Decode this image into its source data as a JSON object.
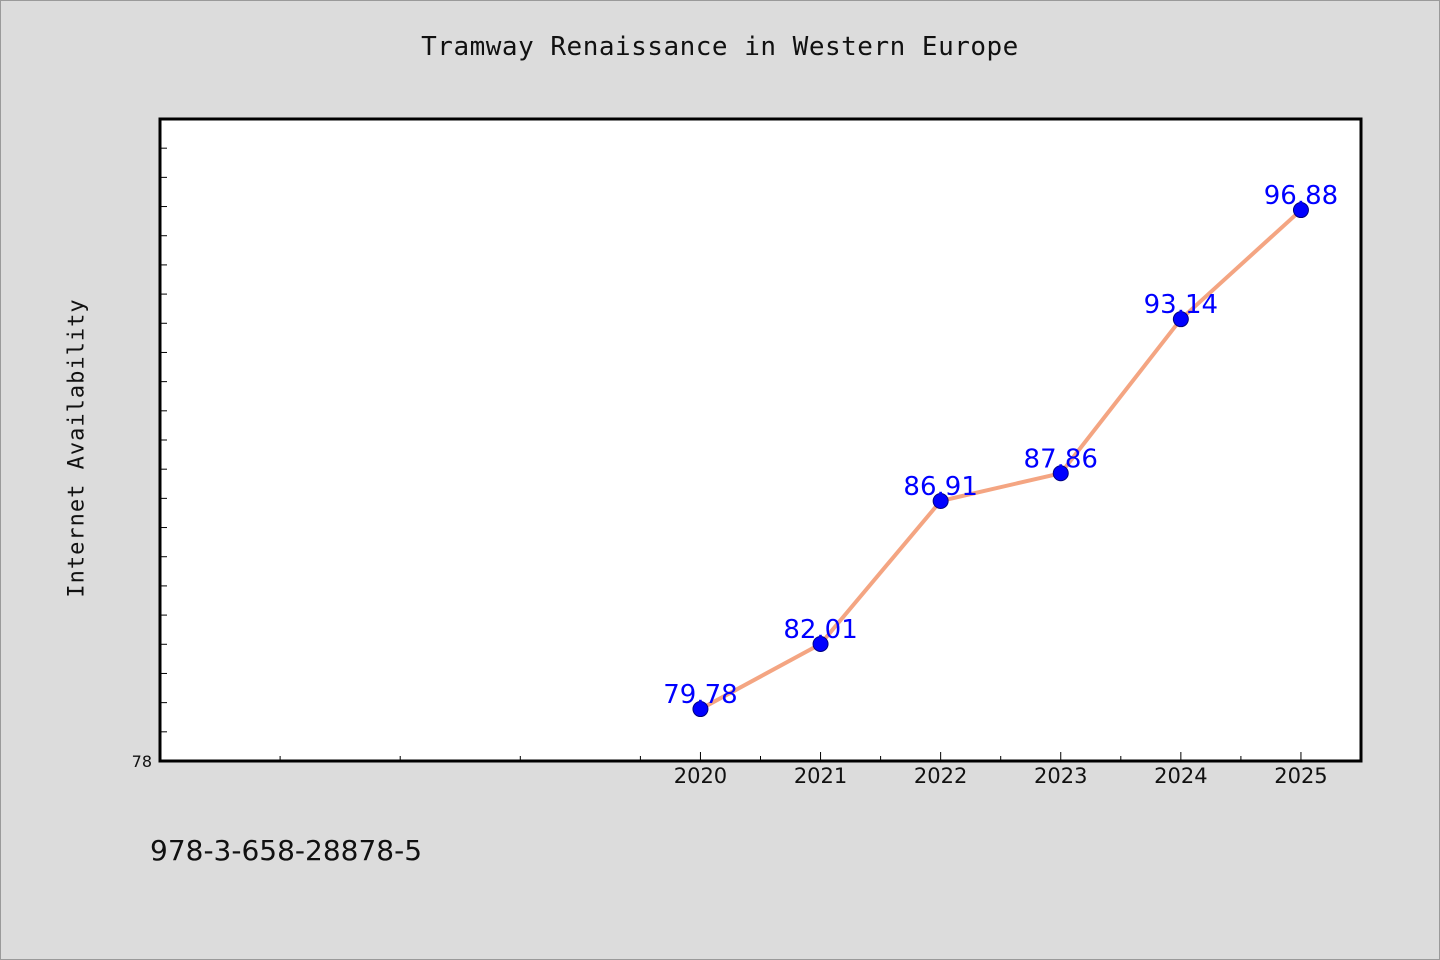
{
  "colors": {
    "background": "#dcdcdc",
    "plot_background": "#ffffff",
    "line": "#f4a582",
    "marker": "#0000ff",
    "label": "#0000ff"
  },
  "footer": {
    "isbn": "978-3-658-28878-5"
  },
  "chart_data": {
    "type": "line",
    "title": "Tramway Renaissance in Western Europe",
    "xlabel": "",
    "ylabel": "Internet Availability",
    "x_labels": [
      "2020",
      "2021",
      "2022",
      "2023",
      "2024",
      "2025"
    ],
    "x": [
      2020,
      2021,
      2022,
      2023,
      2024,
      2025
    ],
    "xlim": [
      2015.5,
      2025.5
    ],
    "ylim": [
      78,
      100
    ],
    "y_tick_labels": [
      "78"
    ],
    "series": [
      {
        "name": "",
        "values": [
          79.78,
          82.01,
          86.91,
          87.86,
          93.14,
          96.88
        ],
        "labels": [
          "79.78",
          "82.01",
          "86.91",
          "87.86",
          "93.14",
          "96.88"
        ]
      }
    ],
    "grid": false,
    "legend": "none"
  }
}
